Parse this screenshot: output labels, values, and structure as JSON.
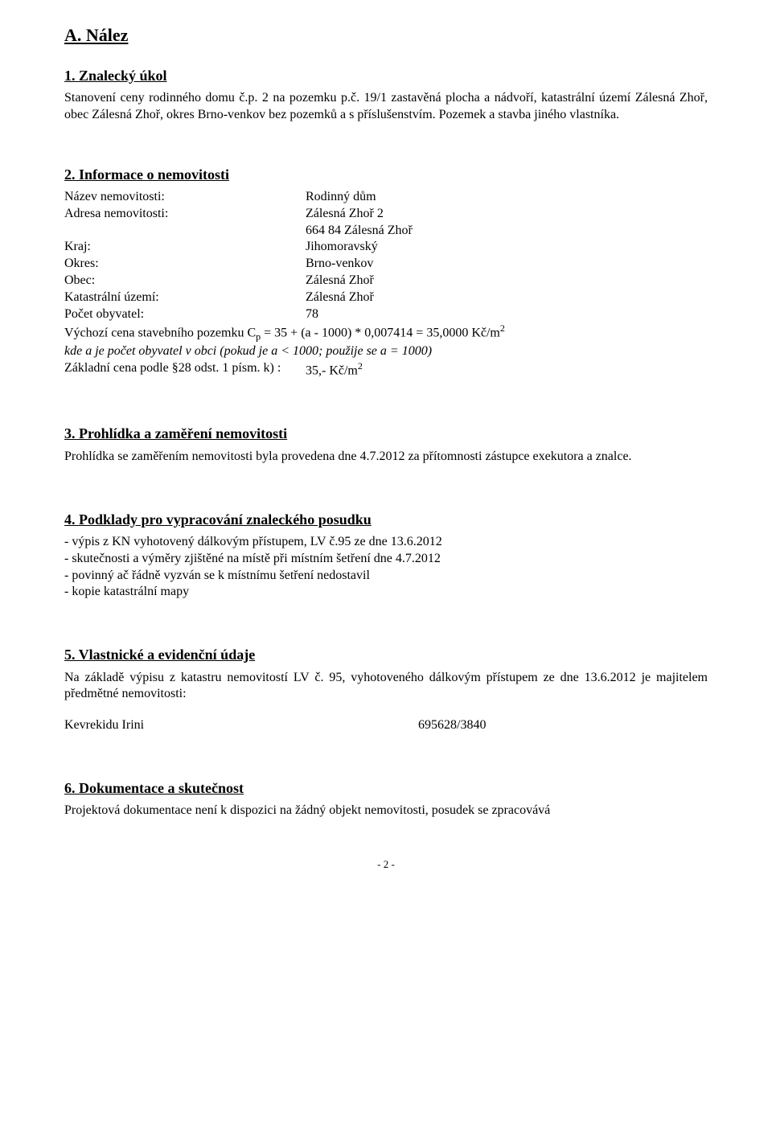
{
  "heading_a": "A. Nález",
  "s1": {
    "title": "1. Znalecký úkol",
    "text": "Stanovení ceny rodinného domu č.p. 2 na pozemku p.č. 19/1 zastavěná plocha a nádvoří, katastrální území Zálesná Zhoř, obec Zálesná Zhoř, okres Brno-venkov bez pozemků a s příslušenstvím. Pozemek a stavba jiného vlastníka."
  },
  "s2": {
    "title": "2. Informace o nemovitosti",
    "rows": {
      "nazev_label": "Název nemovitosti:",
      "nazev_value": "Rodinný dům",
      "adresa_label": "Adresa nemovitosti:",
      "adresa_value1": "Zálesná Zhoř 2",
      "adresa_value2": "664 84 Zálesná Zhoř",
      "kraj_label": "Kraj:",
      "kraj_value": "Jihomoravský",
      "okres_label": "Okres:",
      "okres_value": "Brno-venkov",
      "obec_label": "Obec:",
      "obec_value": "Zálesná Zhoř",
      "ku_label": "Katastrální území:",
      "ku_value": "Zálesná Zhoř",
      "pocet_label": "Počet obyvatel:",
      "pocet_value": "78"
    },
    "price_line1_pre": "Výchozí cena stavebního pozemku C",
    "price_line1_sub": "p",
    "price_line1_mid": " = 35 + (a - 1000) * 0,007414 = 35,0000 Kč/m",
    "price_line1_sup": "2",
    "price_line2": "kde a je počet obyvatel v obci (pokud je a < 1000; použije se a = 1000)",
    "price_line3_label": "Základní cena podle §28 odst. 1 písm. k) :",
    "price_line3_value": "35,- Kč/m",
    "price_line3_sup": "2"
  },
  "s3": {
    "title": "3. Prohlídka a zaměření nemovitosti",
    "text": "Prohlídka se zaměřením nemovitosti byla provedena dne 4.7.2012 za přítomnosti zástupce exekutora a znalce."
  },
  "s4": {
    "title": "4. Podklady pro vypracování znaleckého posudku",
    "l1": "- výpis z KN vyhotovený dálkovým přístupem, LV č.95 ze dne 13.6.2012",
    "l2": "- skutečnosti a výměry zjištěné na místě při místním šetření dne 4.7.2012",
    "l3": "- povinný ač řádně vyzván se k místnímu šetření nedostavil",
    "l4": "- kopie katastrální mapy"
  },
  "s5": {
    "title": "5. Vlastnické a evidenční údaje",
    "text": "Na základě výpisu z katastru nemovitostí LV č. 95, vyhotoveného dálkovým přístupem ze dne 13.6.2012 je majitelem předmětné nemovitosti:",
    "owner_name": "Kevrekidu Irini",
    "owner_num": "695628/3840"
  },
  "s6": {
    "title": "6. Dokumentace a skutečnost",
    "text": "Projektová dokumentace není k dispozici na žádný objekt nemovitosti, posudek se zpracovává"
  },
  "footer": "- 2 -"
}
